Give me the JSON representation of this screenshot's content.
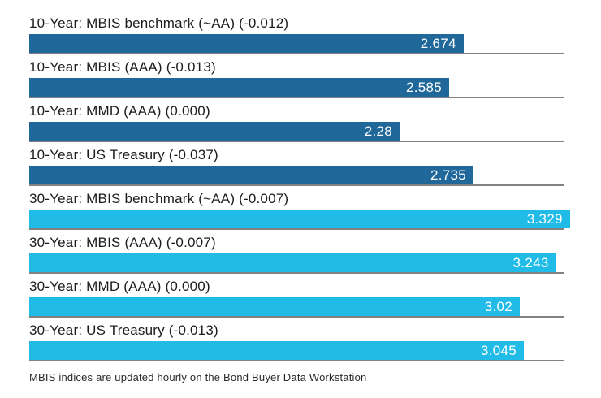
{
  "chart_data": {
    "type": "bar",
    "orientation": "horizontal",
    "title": "",
    "xlabel": "",
    "ylabel": "",
    "xlim": [
      0,
      3.329
    ],
    "grid": "baseline-per-bar",
    "groups": [
      {
        "name": "10-Year",
        "color": "#20689a"
      },
      {
        "name": "30-Year",
        "color": "#20bce7"
      }
    ],
    "baseline_color": "#828282",
    "rows": [
      {
        "label": "10-Year: MBIS benchmark (~AA) (-0.012)",
        "value": 2.674,
        "display": "2.674",
        "change": -0.012,
        "group": "10-Year"
      },
      {
        "label": "10-Year: MBIS (AAA) (-0.013)",
        "value": 2.585,
        "display": "2.585",
        "change": -0.013,
        "group": "10-Year"
      },
      {
        "label": "10-Year: MMD (AAA) (0.000)",
        "value": 2.28,
        "display": "2.28",
        "change": 0.0,
        "group": "10-Year"
      },
      {
        "label": "10-Year: US Treasury (-0.037)",
        "value": 2.735,
        "display": "2.735",
        "change": -0.037,
        "group": "10-Year"
      },
      {
        "label": "30-Year: MBIS benchmark (~AA) (-0.007)",
        "value": 3.329,
        "display": "3.329",
        "change": -0.007,
        "group": "30-Year"
      },
      {
        "label": "30-Year: MBIS (AAA) (-0.007)",
        "value": 3.243,
        "display": "3.243",
        "change": -0.007,
        "group": "30-Year"
      },
      {
        "label": "30-Year: MMD (AAA) (0.000)",
        "value": 3.02,
        "display": "3.02",
        "change": 0.0,
        "group": "30-Year"
      },
      {
        "label": "30-Year: US Treasury (-0.013)",
        "value": 3.045,
        "display": "3.045",
        "change": -0.013,
        "group": "30-Year"
      }
    ],
    "footnote": "MBIS indices are updated hourly on the Bond Buyer Data Workstation"
  }
}
